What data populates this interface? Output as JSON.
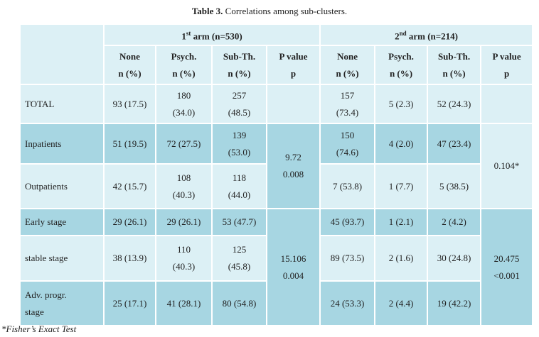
{
  "title": {
    "bold": "Table 3.",
    "rest": " Correlations among sub-clusters."
  },
  "table": {
    "arms": [
      {
        "num": "1",
        "sup": "st",
        "rest": " arm (n=530)"
      },
      {
        "num": "2",
        "sup": "nd",
        "rest": " arm (n=214)"
      }
    ],
    "columns": [
      [
        "None",
        "n (%)"
      ],
      [
        "Psych.",
        "n (%)"
      ],
      [
        "Sub-Th.",
        "n (%)"
      ],
      [
        "P value",
        "p"
      ],
      [
        "None",
        "n (%)"
      ],
      [
        "Psych.",
        "n (%)"
      ],
      [
        "Sub-Th.",
        "n (%)"
      ],
      [
        "P value",
        "p"
      ]
    ],
    "rows": [
      {
        "label": "TOTAL",
        "arm1": [
          "93 (17.5)",
          [
            "180",
            "(34.0)"
          ],
          [
            "257",
            "(48.5)"
          ]
        ],
        "arm2": [
          [
            "157",
            "(73.4)"
          ],
          "5 (2.3)",
          "52 (24.3)"
        ]
      },
      {
        "label": "Inpatients",
        "arm1": [
          "51 (19.5)",
          "72 (27.5)",
          [
            "139",
            "(53.0)"
          ]
        ],
        "arm2": [
          [
            "150",
            "(74.6)"
          ],
          "4 (2.0)",
          "47 (23.4)"
        ]
      },
      {
        "label": "Outpatients",
        "arm1": [
          "42 (15.7)",
          [
            "108",
            "(40.3)"
          ],
          [
            "118",
            "(44.0)"
          ]
        ],
        "arm2": [
          "7 (53.8)",
          "1 (7.7)",
          "5 (38.5)"
        ]
      },
      {
        "label": "Early stage",
        "arm1": [
          "29 (26.1)",
          "29 (26.1)",
          "53 (47.7)"
        ],
        "arm2": [
          "45 (93.7)",
          "1 (2.1)",
          "2 (4.2)"
        ]
      },
      {
        "label": "stable stage",
        "arm1": [
          "38 (13.9)",
          [
            "110",
            "(40.3)"
          ],
          [
            "125",
            "(45.8)"
          ]
        ],
        "arm2": [
          "89 (73.5)",
          "2 (1.6)",
          "30 (24.8)"
        ]
      },
      {
        "label": [
          "Adv. progr.",
          "stage"
        ],
        "arm1": [
          "25 (17.1)",
          "41 (28.1)",
          "80 (54.8)"
        ],
        "arm2": [
          "24 (53.3)",
          "2 (4.4)",
          "19 (42.2)"
        ]
      }
    ],
    "p_values": {
      "arm1": [
        [
          "9.72",
          "0.008"
        ],
        [
          "15.106",
          "0.004"
        ]
      ],
      "arm2": [
        [
          "0.104*"
        ],
        [
          "20.475",
          "<0.001"
        ]
      ]
    }
  },
  "footnote": "*Fisher’s Exact Test"
}
